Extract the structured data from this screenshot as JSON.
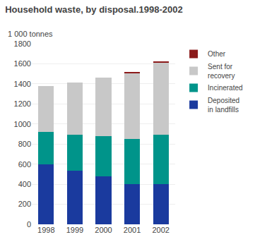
{
  "chart_data": {
    "type": "bar",
    "stacked": true,
    "title": "Household waste, by disposal.1998-2002",
    "ylabel": "1 000 tonnes",
    "categories": [
      "1998",
      "1999",
      "2000",
      "2001",
      "2002"
    ],
    "series": [
      {
        "name": "Deposited\nin landfills",
        "color": "#1a3a9e",
        "values": [
          600,
          535,
          480,
          400,
          400
        ]
      },
      {
        "name": "Incinerated",
        "color": "#00948a",
        "values": [
          320,
          360,
          400,
          450,
          490
        ]
      },
      {
        "name": "Sent for\nrecovery",
        "color": "#c8c8c8",
        "values": [
          460,
          515,
          580,
          655,
          720
        ]
      },
      {
        "name": "Other",
        "color": "#8b1a1a",
        "values": [
          0,
          0,
          0,
          15,
          15
        ]
      }
    ],
    "ylim": [
      0,
      1800
    ],
    "yticks": [
      0,
      200,
      400,
      600,
      800,
      1000,
      1200,
      1400,
      1600,
      1800
    ],
    "grid": true,
    "legend": "right"
  }
}
